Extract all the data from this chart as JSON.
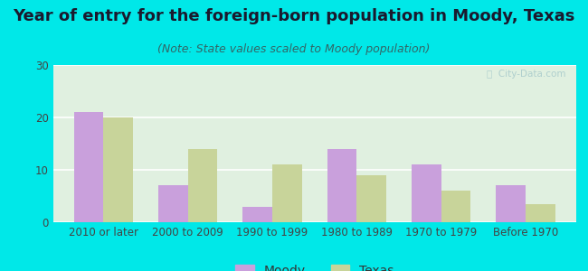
{
  "title": "Year of entry for the foreign-born population in Moody, Texas",
  "subtitle": "(Note: State values scaled to Moody population)",
  "categories": [
    "2010 or later",
    "2000 to 2009",
    "1990 to 1999",
    "1980 to 1989",
    "1970 to 1979",
    "Before 1970"
  ],
  "moody_values": [
    21,
    7,
    3,
    14,
    11,
    7
  ],
  "texas_values": [
    20,
    14,
    11,
    9,
    6,
    3.5
  ],
  "moody_color": "#c9a0dc",
  "texas_color": "#c8d49a",
  "background_outer": "#00e8e8",
  "background_inner_top": "#f0f8ee",
  "background_inner_bottom": "#e0f0e0",
  "ylim": [
    0,
    30
  ],
  "yticks": [
    0,
    10,
    20,
    30
  ],
  "bar_width": 0.35,
  "title_fontsize": 13,
  "subtitle_fontsize": 9,
  "legend_fontsize": 10,
  "tick_fontsize": 8.5
}
